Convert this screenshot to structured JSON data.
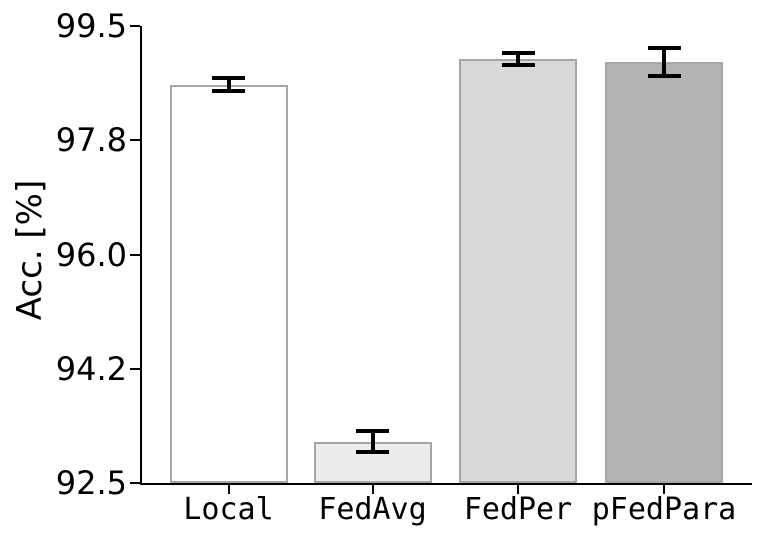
{
  "chart_data": {
    "type": "bar",
    "title": "",
    "xlabel": "",
    "ylabel": "Acc. [%]",
    "categories": [
      "Local",
      "FedAvg",
      "FedPer",
      "pFedPara"
    ],
    "values": [
      98.6,
      93.13,
      99.0,
      98.95
    ],
    "errors": [
      0.1,
      0.16,
      0.09,
      0.22
    ],
    "ylim": [
      92.5,
      99.5
    ],
    "yticks": [
      99.5,
      97.75,
      96.0,
      94.25,
      92.5
    ],
    "ytick_labels": [
      "99.5",
      "97.8",
      "96.0",
      "94.2",
      "92.5"
    ],
    "grid": false,
    "legend": null,
    "colors": {
      "bar_fills": [
        "#ffffff",
        "#ececec",
        "#d9d9d9",
        "#b3b3b3"
      ],
      "bar_edge": "#a6a6a6",
      "error_bar": "#000000",
      "axis": "#000000",
      "text": "#000000",
      "background": "#ffffff"
    }
  }
}
